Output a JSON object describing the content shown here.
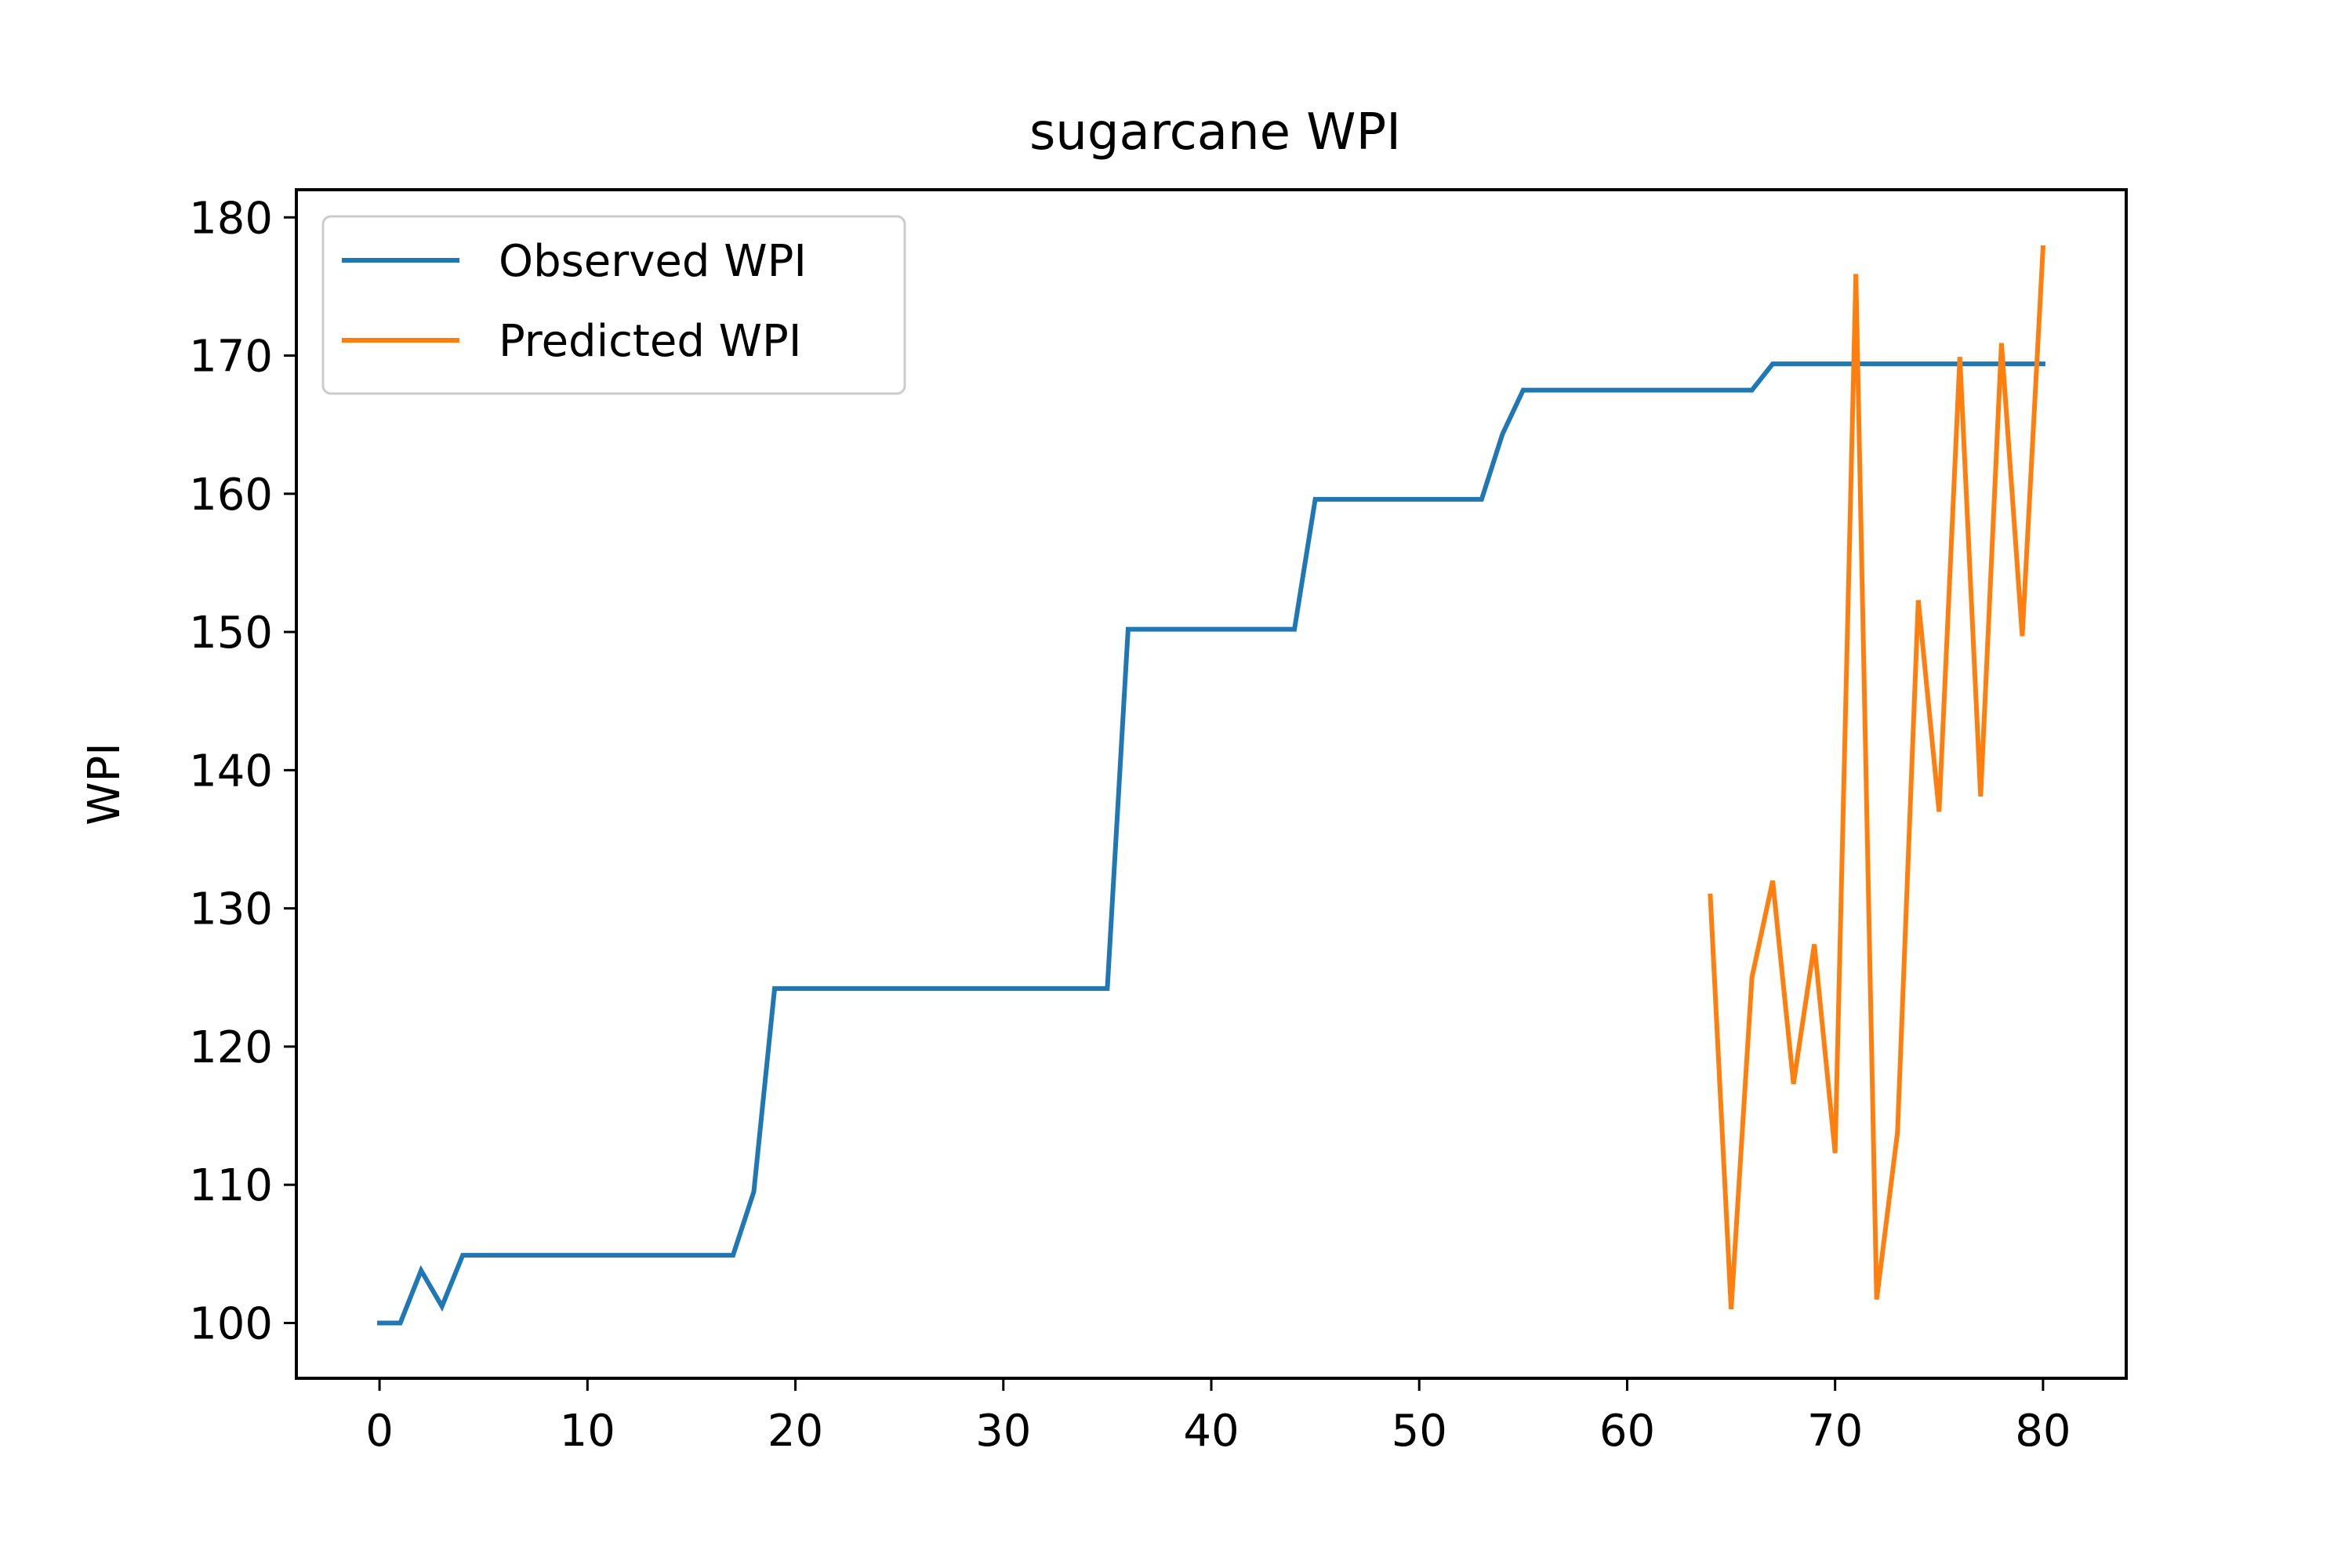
{
  "chart_data": {
    "type": "line",
    "title": "sugarcane WPI",
    "xlabel": "",
    "ylabel": "WPI",
    "xlim": [
      -4,
      84
    ],
    "ylim": [
      96,
      182
    ],
    "x_ticks": [
      0,
      10,
      20,
      30,
      40,
      50,
      60,
      70,
      80
    ],
    "y_ticks": [
      100,
      110,
      120,
      130,
      140,
      150,
      160,
      170,
      180
    ],
    "grid": false,
    "legend_position": "upper-left",
    "series": [
      {
        "name": "Observed WPI",
        "color": "#1f77b4",
        "x": [
          0,
          1,
          2,
          3,
          4,
          17,
          18,
          19,
          35,
          36,
          44,
          45,
          53,
          54,
          55,
          66,
          67,
          80
        ],
        "values": [
          100,
          100,
          103.8,
          101.2,
          104.9,
          104.9,
          109.5,
          124.2,
          124.2,
          150.2,
          150.2,
          159.6,
          159.6,
          164.3,
          167.5,
          167.5,
          169.4,
          169.4
        ]
      },
      {
        "name": "Predicted WPI",
        "color": "#ff7f0e",
        "x": [
          64,
          65,
          66,
          67,
          68,
          69,
          70,
          71,
          72,
          73,
          74,
          75,
          76,
          77,
          78,
          79,
          80
        ],
        "values": [
          130.9,
          101.0,
          125.0,
          132.0,
          117.3,
          127.4,
          112.3,
          175.9,
          101.7,
          113.8,
          152.3,
          137.0,
          169.9,
          138.1,
          170.9,
          149.7,
          177.8
        ]
      }
    ]
  }
}
